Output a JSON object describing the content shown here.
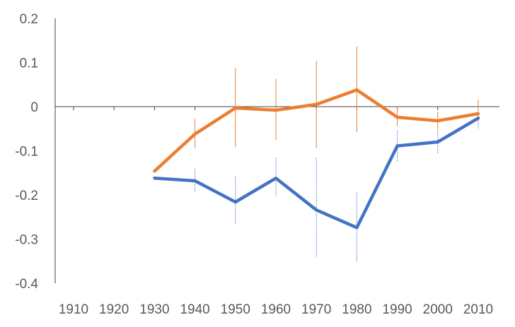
{
  "chart_data": {
    "type": "line",
    "title": "",
    "xlabel": "",
    "ylabel": "",
    "x": [
      1910,
      1920,
      1930,
      1940,
      1950,
      1960,
      1970,
      1980,
      1990,
      2000,
      2010
    ],
    "x_tick_labels": [
      "1910",
      "1920",
      "1930",
      "1940",
      "1950",
      "1960",
      "1970",
      "1980",
      "1990",
      "2000",
      "2010"
    ],
    "y_tick_labels": [
      "0.2",
      "0.1",
      "0",
      "-0.1",
      "-0.2",
      "-0.3",
      "-0.4"
    ],
    "ylim": [
      -0.4,
      0.2
    ],
    "grid": false,
    "legend": "none",
    "series": [
      {
        "color": "#4472C4",
        "error_bar_style": "dotted",
        "points": [
          {
            "x": 1930,
            "y": -0.162,
            "low": null,
            "high": null
          },
          {
            "x": 1940,
            "y": -0.168,
            "low": -0.192,
            "high": -0.142
          },
          {
            "x": 1950,
            "y": -0.216,
            "low": -0.268,
            "high": -0.158
          },
          {
            "x": 1960,
            "y": -0.162,
            "low": -0.204,
            "high": -0.116
          },
          {
            "x": 1970,
            "y": -0.234,
            "low": -0.342,
            "high": -0.116
          },
          {
            "x": 1980,
            "y": -0.274,
            "low": -0.352,
            "high": -0.194
          },
          {
            "x": 1990,
            "y": -0.089,
            "low": -0.124,
            "high": -0.054
          },
          {
            "x": 2000,
            "y": -0.08,
            "low": -0.106,
            "high": -0.054
          },
          {
            "x": 2010,
            "y": -0.026,
            "low": -0.052,
            "high": 0.002
          }
        ]
      },
      {
        "color": "#ED7D31",
        "error_bar_style": "solid",
        "points": [
          {
            "x": 1930,
            "y": -0.146,
            "low": null,
            "high": null
          },
          {
            "x": 1940,
            "y": -0.062,
            "low": -0.094,
            "high": -0.028
          },
          {
            "x": 1950,
            "y": -0.003,
            "low": -0.092,
            "high": 0.087
          },
          {
            "x": 1960,
            "y": -0.008,
            "low": -0.076,
            "high": 0.063
          },
          {
            "x": 1970,
            "y": 0.005,
            "low": -0.094,
            "high": 0.104
          },
          {
            "x": 1980,
            "y": 0.038,
            "low": -0.058,
            "high": 0.136
          },
          {
            "x": 1990,
            "y": -0.024,
            "low": -0.044,
            "high": 0.0
          },
          {
            "x": 2000,
            "y": -0.032,
            "low": -0.052,
            "high": -0.012
          },
          {
            "x": 2010,
            "y": -0.016,
            "low": -0.034,
            "high": 0.016
          }
        ]
      }
    ]
  }
}
